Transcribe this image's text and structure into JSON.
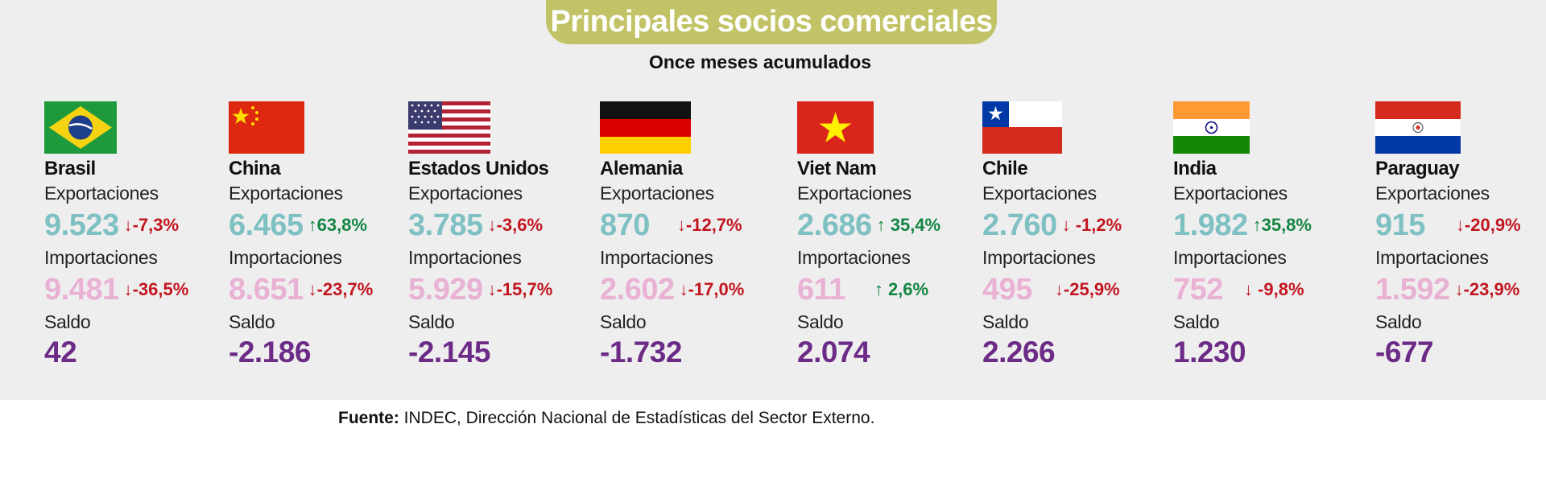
{
  "title": "Principales socios comerciales",
  "subtitle": "Once meses acumulados",
  "source": {
    "label": "Fuente:",
    "text": "INDEC, Dirección Nacional de Estadísticas del Sector Externo."
  },
  "chart_data": {
    "type": "table",
    "title": "Principales socios comerciales",
    "subtitle": "Once meses acumulados",
    "row_labels": {
      "exports": "Exportaciones",
      "imports": "Importaciones",
      "balance": "Saldo"
    },
    "countries": [
      {
        "name": "Brasil",
        "flag": "brazil-flag",
        "exports": "9.523",
        "exports_change": "-7,3%",
        "exports_dir": "down",
        "imports": "9.481",
        "imports_change": "-36,5%",
        "imports_dir": "down",
        "balance": "42"
      },
      {
        "name": "China",
        "flag": "china-flag",
        "exports": "6.465",
        "exports_change": "63,8%",
        "exports_dir": "up",
        "imports": "8.651",
        "imports_change": "-23,7%",
        "imports_dir": "down",
        "balance": "-2.186"
      },
      {
        "name": "Estados Unidos",
        "flag": "usa-flag",
        "exports": "3.785",
        "exports_change": "-3,6%",
        "exports_dir": "down",
        "imports": "5.929",
        "imports_change": "-15,7%",
        "imports_dir": "down",
        "balance": "-2.145"
      },
      {
        "name": "Alemania",
        "flag": "germany-flag",
        "exports": "870",
        "exports_change": "-12,7%",
        "exports_dir": "down",
        "imports": "2.602",
        "imports_change": "-17,0%",
        "imports_dir": "down",
        "balance": "-1.732"
      },
      {
        "name": "Viet Nam",
        "flag": "vietnam-flag",
        "exports": "2.686",
        "exports_change": "35,4%",
        "exports_dir": "up",
        "imports": "611",
        "imports_change": "2,6%",
        "imports_dir": "up",
        "balance": "2.074"
      },
      {
        "name": "Chile",
        "flag": "chile-flag",
        "exports": "2.760",
        "exports_change": "-1,2%",
        "exports_dir": "down",
        "imports": "495",
        "imports_change": "-25,9%",
        "imports_dir": "down",
        "balance": "2.266"
      },
      {
        "name": "India",
        "flag": "india-flag",
        "exports": "1.982",
        "exports_change": "35,8%",
        "exports_dir": "up",
        "imports": "752",
        "imports_change": "-9,8%",
        "imports_dir": "down",
        "balance": "1.230"
      },
      {
        "name": "Paraguay",
        "flag": "paraguay-flag",
        "exports": "915",
        "exports_change": "-20,9%",
        "exports_dir": "down",
        "imports": "1.592",
        "imports_change": "-23,9%",
        "imports_dir": "down",
        "balance": "-677"
      }
    ]
  },
  "colors": {
    "pill": "#c2c366",
    "exports": "#7fc1c3",
    "imports": "#e9b1d3",
    "balance": "#6c2b86",
    "down": "#c2161f",
    "up": "#138542"
  }
}
